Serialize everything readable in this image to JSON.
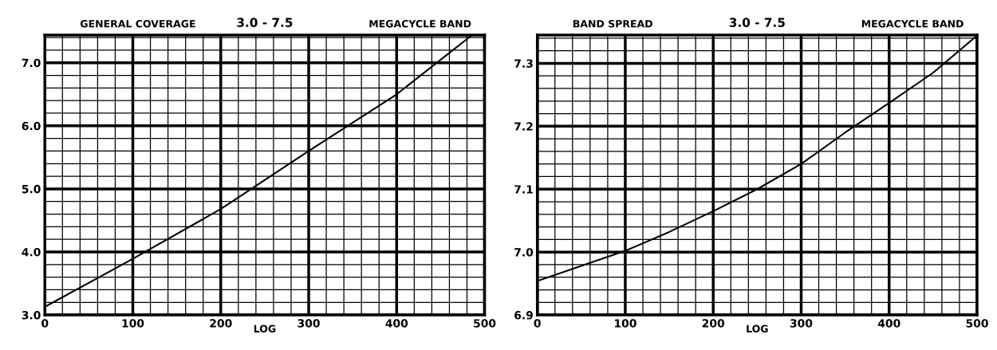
{
  "chart_data": [
    {
      "type": "line",
      "title": "GENERAL COVERAGE",
      "subtitle": "3.0 - 7.5",
      "annotations": [
        "MEGACYCLE BAND"
      ],
      "xlabel": "LOG",
      "x": [
        0,
        100,
        200,
        300,
        400,
        485
      ],
      "series": [
        {
          "color": "#000000",
          "values": [
            3.13,
            3.89,
            4.68,
            5.6,
            6.5,
            7.43
          ]
        }
      ],
      "xlim": [
        0,
        500
      ],
      "xticks": [
        0,
        100,
        200,
        300,
        400,
        500
      ],
      "ylim": [
        3.0,
        7.44
      ],
      "yticks": [
        {
          "value": 3.0,
          "label": "3.0"
        },
        {
          "value": 4.0,
          "label": "4.0"
        },
        {
          "value": 5.0,
          "label": "5.0"
        },
        {
          "value": 6.0,
          "label": "6.0"
        },
        {
          "value": 7.0,
          "label": "7.0"
        }
      ],
      "grid": true,
      "marker": "none",
      "line_style": "solid"
    },
    {
      "type": "line",
      "title": "BAND SPREAD",
      "subtitle": "3.0 - 7.5",
      "annotations": [
        "MEGACYCLE BAND"
      ],
      "xlabel": "LOG",
      "x": [
        0,
        50,
        100,
        150,
        200,
        250,
        300,
        350,
        400,
        450,
        500
      ],
      "series": [
        {
          "color": "#000000",
          "values": [
            6.954,
            6.978,
            7.002,
            7.032,
            7.065,
            7.1,
            7.14,
            7.19,
            7.237,
            7.285,
            7.344
          ]
        }
      ],
      "xlim": [
        0,
        500
      ],
      "xticks": [
        0,
        100,
        200,
        300,
        400,
        500
      ],
      "ylim": [
        6.9,
        7.345
      ],
      "yticks": [
        {
          "value": 6.9,
          "label": "6.9"
        },
        {
          "value": 7.0,
          "label": "7.0"
        },
        {
          "value": 7.1,
          "label": "7.1"
        },
        {
          "value": 7.2,
          "label": "7.2"
        },
        {
          "value": 7.3,
          "label": "7.3"
        }
      ],
      "grid": true,
      "marker": "none",
      "line_style": "solid"
    }
  ]
}
